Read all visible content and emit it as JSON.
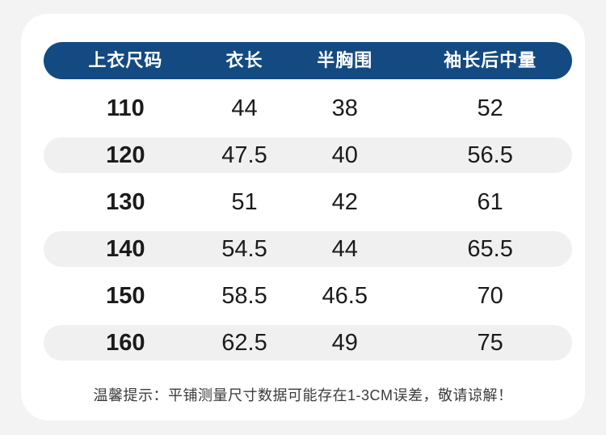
{
  "colors": {
    "page_background": "#f3f3f4",
    "card_background": "#ffffff",
    "header_background": "#134a81",
    "header_text": "#ffffff",
    "alt_row_background": "#f0f0f1",
    "body_text": "#1b1b1b",
    "note_text": "#3b3b3b"
  },
  "chart_data": {
    "type": "table",
    "columns": [
      "上衣尺码",
      "衣长",
      "半胸围",
      "袖长后中量"
    ],
    "rows": [
      [
        110,
        44,
        38,
        52
      ],
      [
        120,
        47.5,
        40,
        56.5
      ],
      [
        130,
        51,
        42,
        61
      ],
      [
        140,
        54.5,
        44,
        65.5
      ],
      [
        150,
        58.5,
        46.5,
        70
      ],
      [
        160,
        62.5,
        49,
        75
      ]
    ],
    "layout": {
      "header_style": "navy pill, white bold text",
      "row_style": "alternating white and light-gray rounded pills",
      "unit": "CM"
    }
  },
  "note": "温馨提示：平铺测量尺寸数据可能存在1-3CM误差，敬请谅解！"
}
